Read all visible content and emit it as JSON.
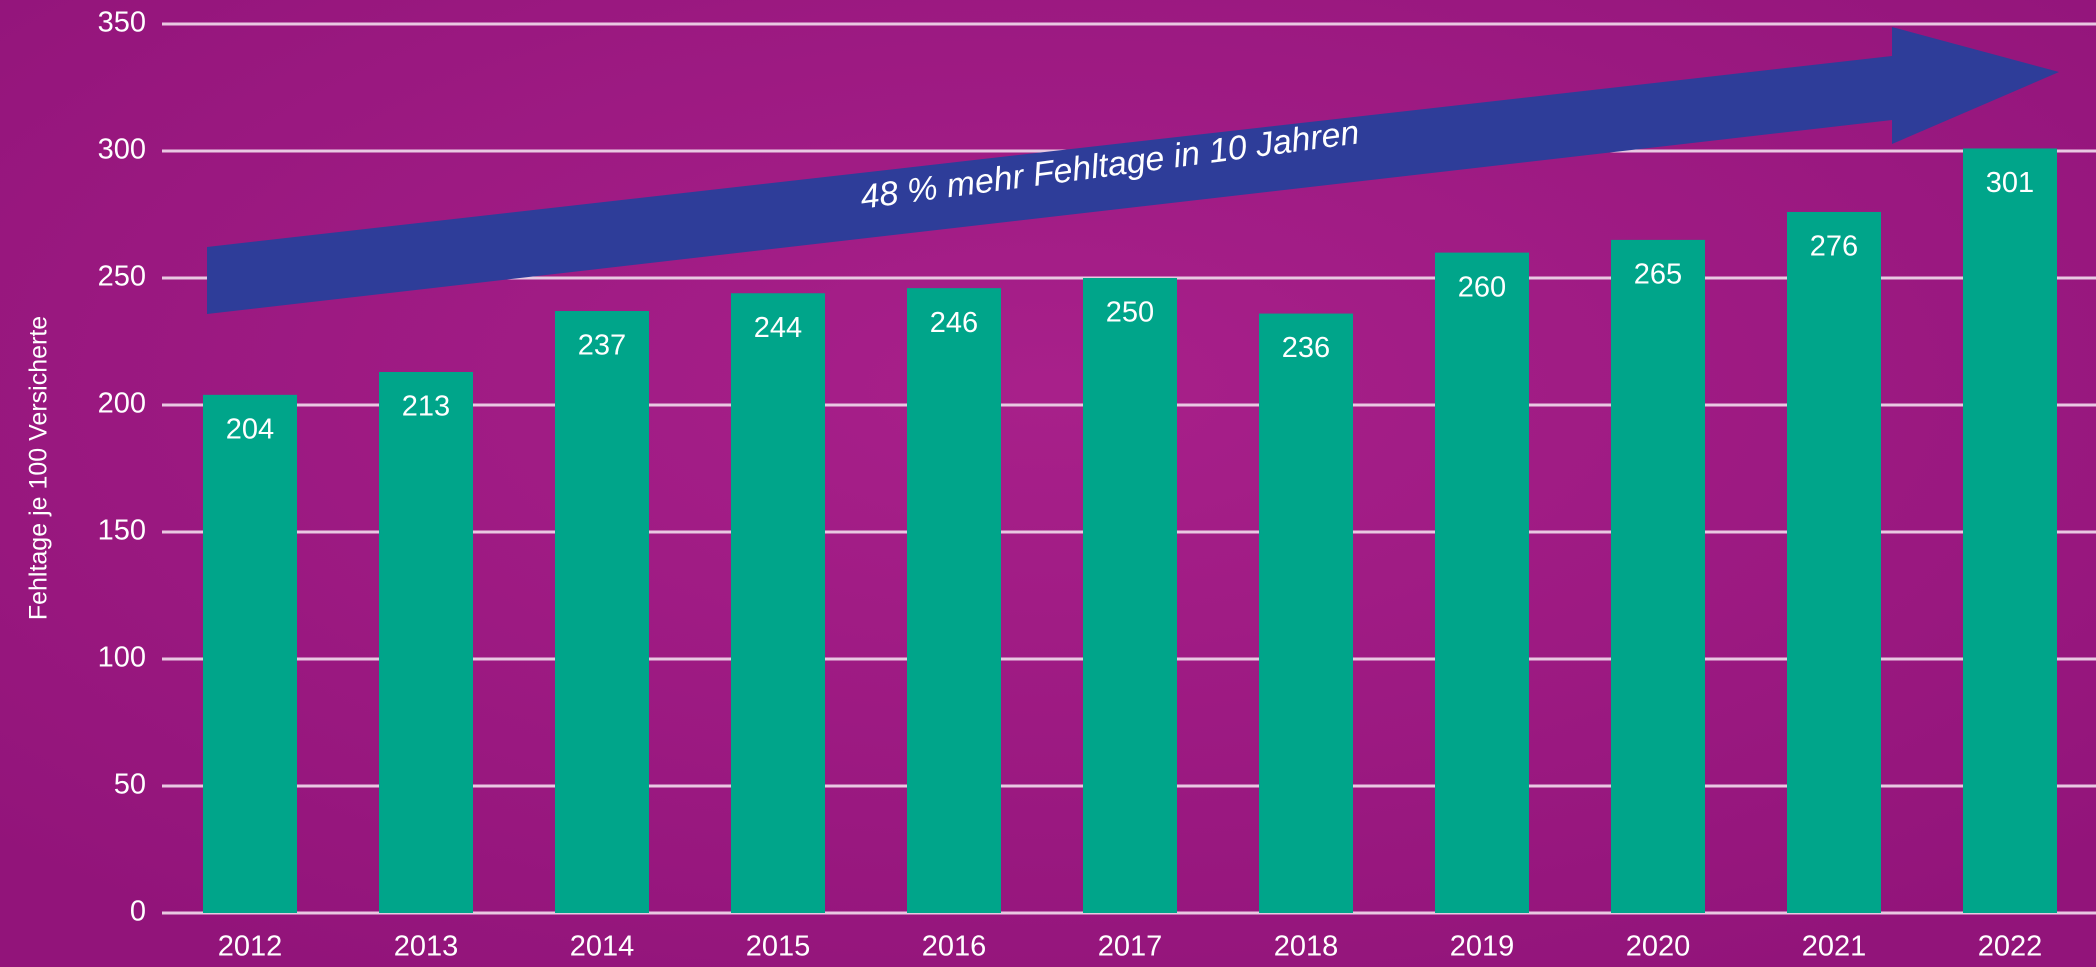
{
  "chart_data": {
    "type": "bar",
    "y_axis_label": "Fehltage je 100 Versicherte",
    "annotation": "48 % mehr Fehltage in 10 Jahren",
    "categories": [
      "2012",
      "2013",
      "2014",
      "2015",
      "2016",
      "2017",
      "2018",
      "2019",
      "2020",
      "2021",
      "2022"
    ],
    "values": [
      204,
      213,
      237,
      244,
      246,
      250,
      236,
      260,
      265,
      276,
      301
    ],
    "color": "#00a58a",
    "ylim": [
      0,
      350
    ],
    "yticks": [
      0,
      50,
      100,
      150,
      200,
      250,
      300,
      350
    ],
    "grid": true
  }
}
